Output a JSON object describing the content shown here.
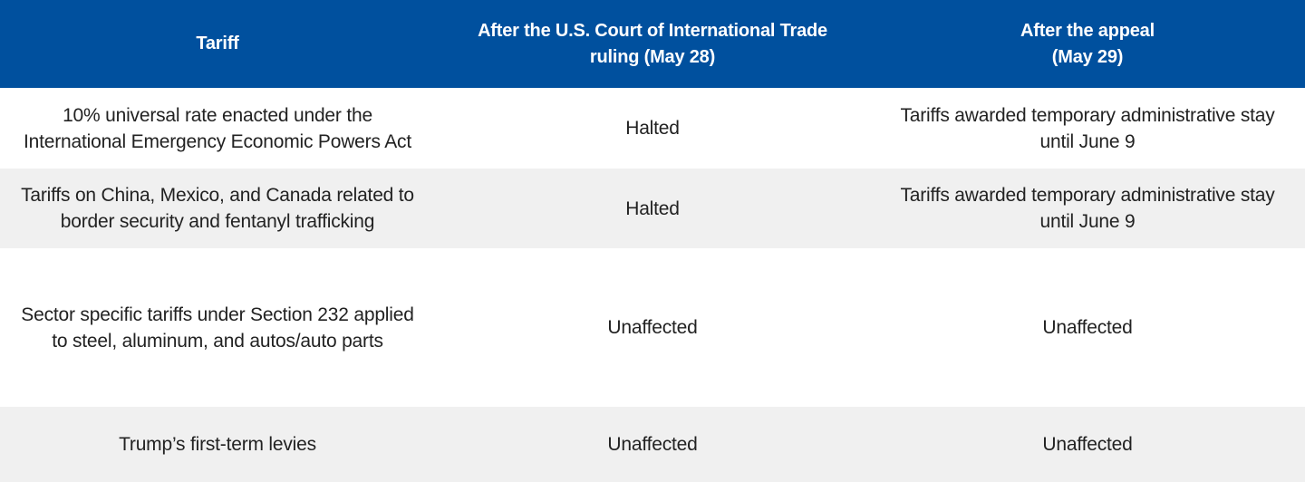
{
  "table": {
    "header": [
      [
        "Tariff"
      ],
      [
        "After the U.S. Court of International Trade",
        "ruling (May 28)"
      ],
      [
        "After the appeal",
        "(May 29)"
      ]
    ],
    "rows": [
      [
        [
          "10% universal rate enacted under the",
          "International Emergency Economic Powers Act"
        ],
        [
          "Halted"
        ],
        [
          "Tariffs awarded temporary administrative stay",
          "until June 9"
        ]
      ],
      [
        [
          "Tariffs on China, Mexico, and Canada related to",
          "border security and fentanyl trafficking"
        ],
        [
          "Halted"
        ],
        [
          "Tariffs awarded temporary administrative stay",
          "until June 9"
        ]
      ],
      [
        [
          "Sector specific tariffs under Section 232 applied",
          "to steel, aluminum, and autos/auto parts"
        ],
        [
          "Unaffected"
        ],
        [
          "Unaffected"
        ]
      ],
      [
        [
          "Trump’s first-term levies"
        ],
        [
          "Unaffected"
        ],
        [
          "Unaffected"
        ]
      ]
    ]
  }
}
